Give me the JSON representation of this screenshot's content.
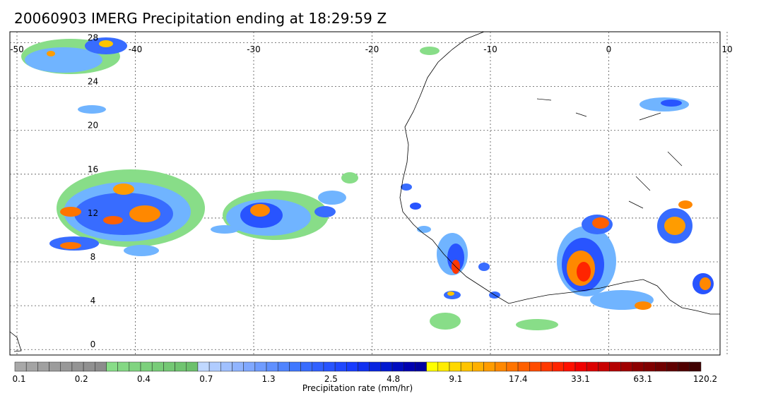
{
  "title": "20060903 IMERG Precipitation ending at 18:29:59 Z",
  "map": {
    "lon_labels": [
      "-50",
      "-40",
      "-30",
      "-20",
      "-10",
      "0",
      "10"
    ],
    "lat_labels": [
      "28",
      "24",
      "20",
      "16",
      "12",
      "8",
      "4",
      "0"
    ],
    "lon_range": [
      -50,
      10
    ],
    "lat_range": [
      -0.5,
      29
    ]
  },
  "colorbar": {
    "title": "Precipitation rate (mm/hr)",
    "tick_labels": [
      "0.1",
      "0.2",
      "0.4",
      "0.7",
      "1.3",
      "2.5",
      "4.8",
      "9.1",
      "17.4",
      "33.1",
      "63.1",
      "120.2"
    ],
    "colors": [
      "#a8a8a8",
      "#a4a4a4",
      "#a0a0a0",
      "#9c9c9c",
      "#989898",
      "#949494",
      "#909090",
      "#8c8c8c",
      "#88dd88",
      "#84d884",
      "#80d480",
      "#7cd07c",
      "#78cc78",
      "#74c874",
      "#70c470",
      "#6cc06c",
      "#c0d8ff",
      "#b0ccff",
      "#a0c0ff",
      "#90b4ff",
      "#80a8ff",
      "#709cff",
      "#6090ff",
      "#5084ff",
      "#4078ff",
      "#386cff",
      "#3060ff",
      "#2854ff",
      "#2048ff",
      "#183cff",
      "#1030f0",
      "#0824e0",
      "#0018d0",
      "#000cc0",
      "#0000b0",
      "#0000a0",
      "#ffff00",
      "#ffec00",
      "#ffd800",
      "#ffc400",
      "#ffb000",
      "#ff9c00",
      "#ff8800",
      "#ff7400",
      "#ff6000",
      "#ff4c00",
      "#ff3800",
      "#ff2400",
      "#ff1000",
      "#f00000",
      "#dc0000",
      "#c80000",
      "#b40000",
      "#a00000",
      "#8c0000",
      "#800000",
      "#700000",
      "#600000",
      "#500000",
      "#400000"
    ]
  }
}
